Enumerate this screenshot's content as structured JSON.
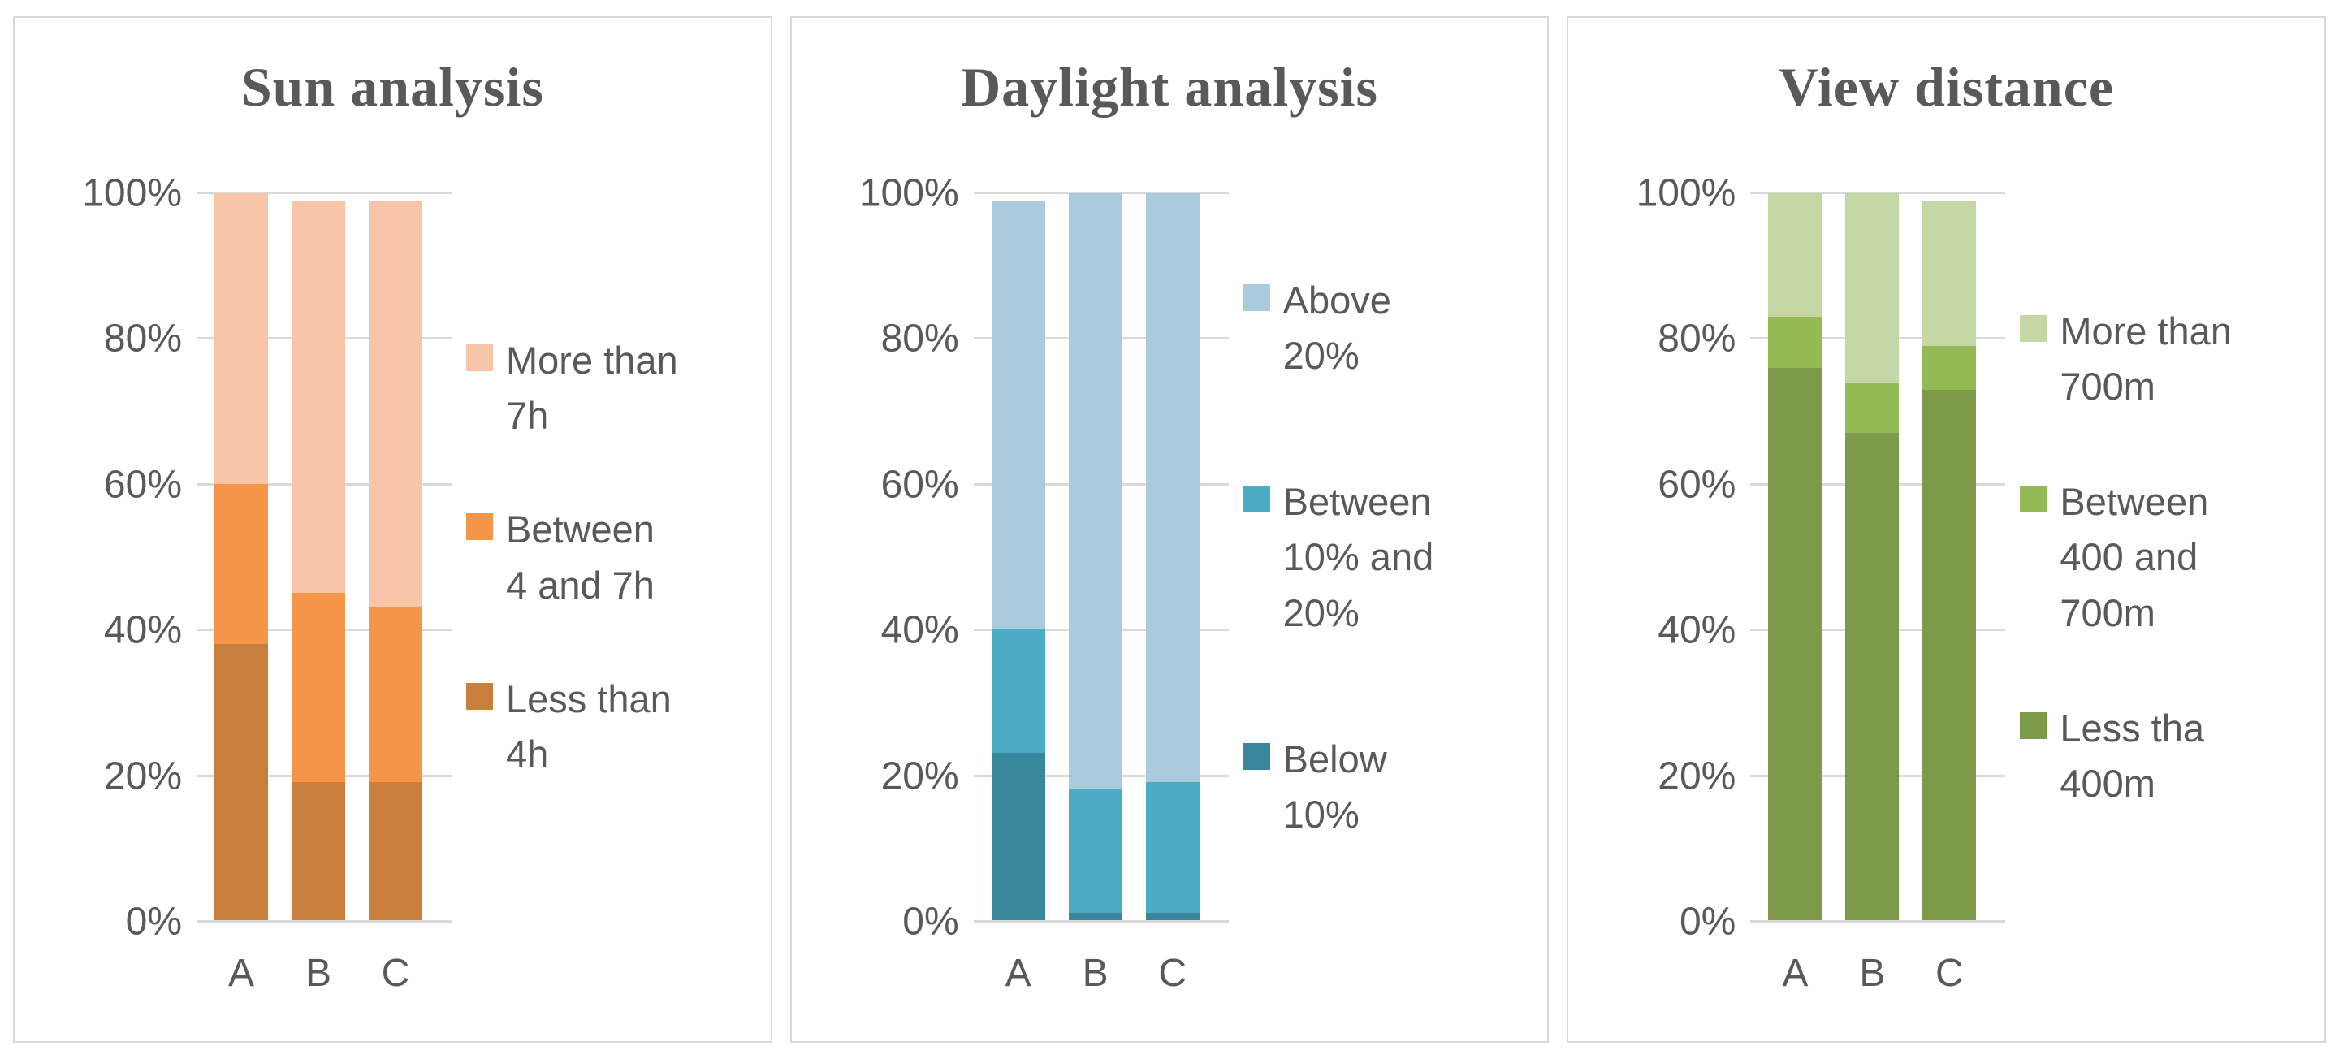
{
  "page": {
    "background": "#ffffff",
    "text_color": "#595959",
    "grid_color": "#d9d9d9",
    "panel_border_color": "#d9d9d9"
  },
  "chart_data": [
    {
      "type": "bar",
      "stacked": true,
      "title": "Sun analysis",
      "categories": [
        "A",
        "B",
        "C"
      ],
      "yticks": [
        "100%",
        "80%",
        "60%",
        "40%",
        "20%",
        "0%"
      ],
      "ylim": [
        0,
        100
      ],
      "grid": "horizontal",
      "legend_position": "right",
      "series": [
        {
          "name": "Less than 4h",
          "color": "#c97e3c",
          "values": [
            38,
            19,
            19
          ]
        },
        {
          "name": "Between 4 and 7h",
          "color": "#f4954a",
          "values": [
            22,
            26,
            24
          ]
        },
        {
          "name": "More than 7h",
          "color": "#f8c5a9",
          "values": [
            40,
            54,
            56
          ]
        }
      ]
    },
    {
      "type": "bar",
      "stacked": true,
      "title": "Daylight analysis",
      "categories": [
        "A",
        "B",
        "C"
      ],
      "yticks": [
        "100%",
        "80%",
        "60%",
        "40%",
        "20%",
        "0%"
      ],
      "ylim": [
        0,
        100
      ],
      "grid": "horizontal",
      "legend_position": "right",
      "series": [
        {
          "name": "Below 10%",
          "color": "#38879b",
          "values": [
            23,
            1,
            1
          ]
        },
        {
          "name": "Between 10% and 20%",
          "color": "#4bacc6",
          "values": [
            17,
            17,
            18
          ]
        },
        {
          "name": "Above 20%",
          "color": "#a9cbdc",
          "values": [
            59,
            82,
            81
          ]
        }
      ]
    },
    {
      "type": "bar",
      "stacked": true,
      "title": "View distance",
      "categories": [
        "A",
        "B",
        "C"
      ],
      "yticks": [
        "100%",
        "80%",
        "60%",
        "40%",
        "20%",
        "0%"
      ],
      "ylim": [
        0,
        100
      ],
      "grid": "horizontal",
      "legend_position": "right",
      "series": [
        {
          "name": "Less tha 400m",
          "color": "#7d9a4b",
          "values": [
            76,
            67,
            73
          ]
        },
        {
          "name": "Between 400 and 700m",
          "color": "#94ba55",
          "values": [
            7,
            7,
            6
          ]
        },
        {
          "name": "More than 700m",
          "color": "#c5d7a5",
          "values": [
            17,
            26,
            20
          ]
        }
      ]
    }
  ]
}
